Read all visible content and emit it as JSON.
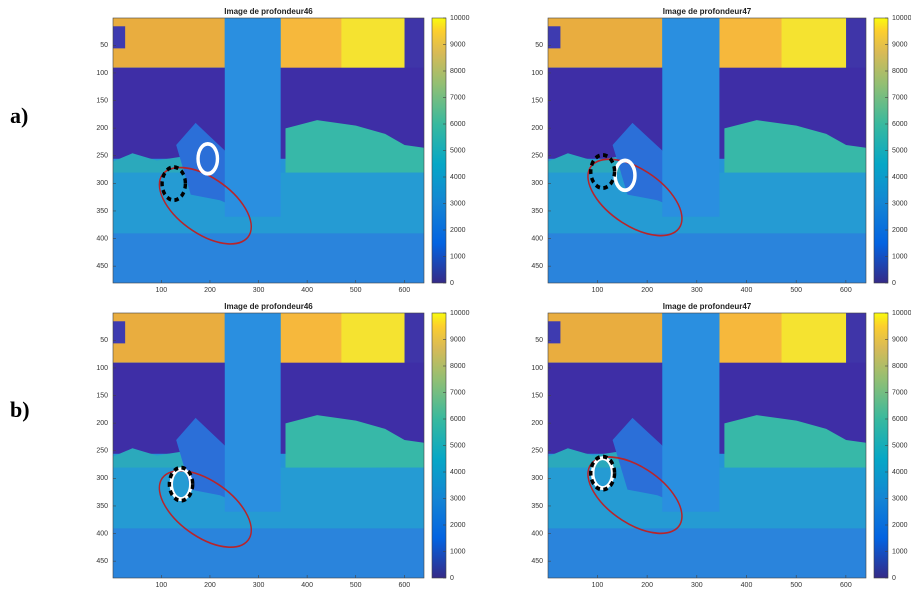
{
  "panel_labels": [
    "a)",
    "b)"
  ],
  "chart_data": [
    {
      "type": "image",
      "title": "Image de profondeur46",
      "xlim": [
        0.5,
        640.5
      ],
      "ylim": [
        0.5,
        480.5
      ],
      "xticks": [
        100,
        200,
        300,
        400,
        500,
        600
      ],
      "yticks": [
        50,
        100,
        150,
        200,
        250,
        300,
        350,
        400,
        450
      ],
      "clim": [
        0,
        10000
      ],
      "cticks": [
        0,
        1000,
        2000,
        3000,
        4000,
        5000,
        6000,
        7000,
        8000,
        9000,
        10000
      ]
    },
    {
      "type": "image",
      "title": "Image de profondeur47",
      "xlim": [
        0.5,
        640.5
      ],
      "ylim": [
        0.5,
        480.5
      ],
      "xticks": [
        100,
        200,
        300,
        400,
        500,
        600
      ],
      "yticks": [
        50,
        100,
        150,
        200,
        250,
        300,
        350,
        400,
        450
      ],
      "clim": [
        0,
        10000
      ],
      "cticks": [
        0,
        1000,
        2000,
        3000,
        4000,
        5000,
        6000,
        7000,
        8000,
        9000,
        10000
      ]
    },
    {
      "type": "image",
      "title": "Image de profondeur46",
      "xlim": [
        0.5,
        640.5
      ],
      "ylim": [
        0.5,
        480.5
      ],
      "xticks": [
        100,
        200,
        300,
        400,
        500,
        600
      ],
      "yticks": [
        50,
        100,
        150,
        200,
        250,
        300,
        350,
        400,
        450
      ],
      "clim": [
        0,
        10000
      ],
      "cticks": [
        0,
        1000,
        2000,
        3000,
        4000,
        5000,
        6000,
        7000,
        8000,
        9000,
        10000
      ]
    },
    {
      "type": "image",
      "title": "Image de profondeur47",
      "xlim": [
        0.5,
        640.5
      ],
      "ylim": [
        0.5,
        480.5
      ],
      "xticks": [
        100,
        200,
        300,
        400,
        500,
        600
      ],
      "yticks": [
        50,
        100,
        150,
        200,
        250,
        300,
        350,
        400,
        450
      ],
      "clim": [
        0,
        10000
      ],
      "cticks": [
        0,
        1000,
        2000,
        3000,
        4000,
        5000,
        6000,
        7000,
        8000,
        9000,
        10000
      ]
    }
  ]
}
